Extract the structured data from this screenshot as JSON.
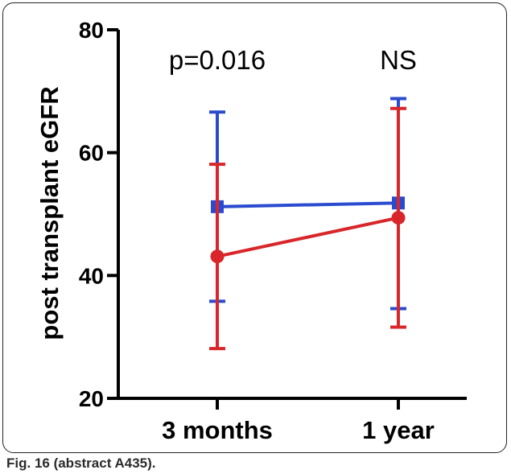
{
  "chart_data": {
    "type": "line",
    "title": "",
    "xlabel": "",
    "ylabel": "post transplant eGFR",
    "categories": [
      "3 months",
      "1 year"
    ],
    "ylim": [
      20,
      80
    ],
    "yticks": [
      "20",
      "40",
      "60",
      "80"
    ],
    "grid": false,
    "series": [
      {
        "color": "#2a4bcf",
        "marker": "square",
        "values": [
          51.2,
          51.8
        ],
        "error_low": [
          35.8,
          34.6
        ],
        "error_high": [
          66.6,
          68.8
        ]
      },
      {
        "color": "#d8262a",
        "marker": "circle",
        "values": [
          43.1,
          49.4
        ],
        "error_low": [
          28.1,
          31.6
        ],
        "error_high": [
          58.1,
          67.2
        ]
      }
    ],
    "annotations": [
      {
        "text": "p=0.016",
        "category": "3 months"
      },
      {
        "text": "NS",
        "category": "1 year"
      }
    ]
  },
  "caption": "Fig. 16 (abstract A435)."
}
